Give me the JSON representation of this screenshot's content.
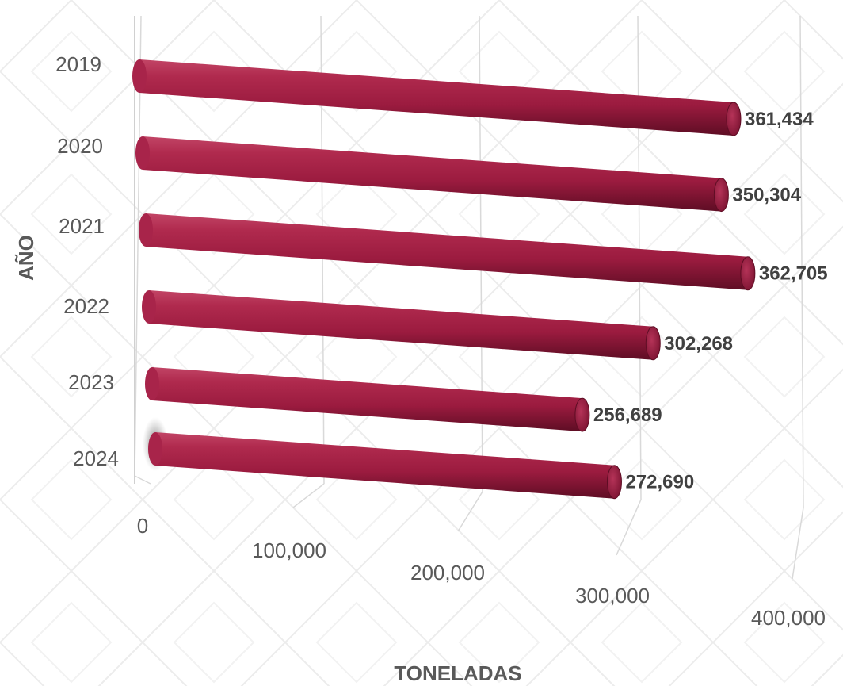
{
  "chart_data": {
    "type": "bar",
    "orientation": "horizontal",
    "style": "3d-cylinder",
    "categories": [
      "2019",
      "2020",
      "2021",
      "2022",
      "2023",
      "2024"
    ],
    "values": [
      361434,
      350304,
      362705,
      302268,
      256689,
      272690
    ],
    "value_labels": [
      "361,434",
      "350,304",
      "362,705",
      "302,268",
      "256,689",
      "272,690"
    ],
    "xlabel": "TONELADAS",
    "ylabel": "AÑO",
    "xlim": [
      0,
      400000
    ],
    "x_ticks": [
      "0",
      "100,000",
      "200,000",
      "300,000",
      "400,000"
    ],
    "grid": true,
    "legend": "none",
    "colors": {
      "bar": "#9B1B3F",
      "grid": "#d9d9d9",
      "background_pattern": "#e9e9e9"
    }
  }
}
